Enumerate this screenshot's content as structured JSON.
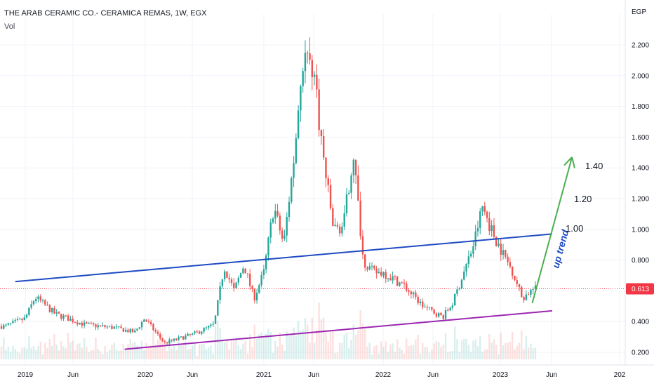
{
  "header": {
    "title": "THE ARAB CERAMIC CO.- CERAMICA REMAS, 1W, EGX",
    "volume_label": "Vol"
  },
  "colors": {
    "up": "#26a69a",
    "down": "#ef5350",
    "upper_line": "#1e4bc3",
    "lower_line": "#9c27b0",
    "arrow": "#4caf50",
    "price_line": "#f23645",
    "trend_text": "#1e4bc3"
  },
  "chart_data": {
    "type": "candlestick",
    "symbol": "THE ARAB CERAMIC CO.- CERAMICA REMAS",
    "interval": "1W",
    "exchange": "EGX",
    "currency": "EGP",
    "yaxis_unit": "EGP",
    "ylim": [
      0.14,
      2.42
    ],
    "yticks": [
      "0.200",
      "0.400",
      "0.600",
      "0.800",
      "1.000",
      "1.200",
      "1.400",
      "1.600",
      "1.800",
      "2.000",
      "2.200"
    ],
    "xticks": [
      "2019",
      "Jun",
      "2020",
      "Jun",
      "2021",
      "Jun",
      "2022",
      "Jun",
      "2023",
      "Jun",
      "202"
    ],
    "last_price": "0.613",
    "weekly_close_path": [
      {
        "date": "2018-11",
        "price": 0.37
      },
      {
        "date": "2019-01",
        "price": 0.42
      },
      {
        "date": "2019-02",
        "price": 0.56
      },
      {
        "date": "2019-04",
        "price": 0.45
      },
      {
        "date": "2019-07",
        "price": 0.38
      },
      {
        "date": "2019-10",
        "price": 0.36
      },
      {
        "date": "2019-12",
        "price": 0.33
      },
      {
        "date": "2020-01",
        "price": 0.42
      },
      {
        "date": "2020-03",
        "price": 0.26
      },
      {
        "date": "2020-06",
        "price": 0.32
      },
      {
        "date": "2020-08",
        "price": 0.38
      },
      {
        "date": "2020-09",
        "price": 0.76
      },
      {
        "date": "2020-10",
        "price": 0.6
      },
      {
        "date": "2020-11",
        "price": 0.77
      },
      {
        "date": "2020-12",
        "price": 0.55
      },
      {
        "date": "2021-01",
        "price": 0.72
      },
      {
        "date": "2021-02",
        "price": 1.15
      },
      {
        "date": "2021-03",
        "price": 0.9
      },
      {
        "date": "2021-04",
        "price": 1.45
      },
      {
        "date": "2021-05",
        "price": 2.15
      },
      {
        "date": "2021-06",
        "price": 2.05
      },
      {
        "date": "2021-07",
        "price": 1.45
      },
      {
        "date": "2021-08",
        "price": 1.0
      },
      {
        "date": "2021-09",
        "price": 1.02
      },
      {
        "date": "2021-10",
        "price": 1.5
      },
      {
        "date": "2021-11",
        "price": 0.8
      },
      {
        "date": "2021-12",
        "price": 0.72
      },
      {
        "date": "2022-01",
        "price": 0.72
      },
      {
        "date": "2022-03",
        "price": 0.64
      },
      {
        "date": "2022-05",
        "price": 0.5
      },
      {
        "date": "2022-07",
        "price": 0.43
      },
      {
        "date": "2022-08",
        "price": 0.52
      },
      {
        "date": "2022-09",
        "price": 0.7
      },
      {
        "date": "2022-10",
        "price": 0.88
      },
      {
        "date": "2022-11",
        "price": 1.15
      },
      {
        "date": "2022-12",
        "price": 0.98
      },
      {
        "date": "2023-01",
        "price": 0.85
      },
      {
        "date": "2023-02",
        "price": 0.73
      },
      {
        "date": "2023-03",
        "price": 0.55
      },
      {
        "date": "2023-04",
        "price": 0.61
      }
    ],
    "annotations": {
      "upper_trendline": {
        "start": {
          "date": "2018-12",
          "price": 0.66
        },
        "end": {
          "date": "2023-06",
          "price": 0.97
        }
      },
      "lower_trendline": {
        "start": {
          "date": "2019-11",
          "price": 0.22
        },
        "end": {
          "date": "2023-06",
          "price": 0.47
        }
      },
      "trend_arrow": {
        "start": {
          "date": "2023-04",
          "price": 0.52
        },
        "end": {
          "date": "2023-08",
          "price": 1.47
        }
      },
      "trend_label": "up trend",
      "targets": [
        "1.00",
        "1.20",
        "1.40"
      ]
    }
  }
}
